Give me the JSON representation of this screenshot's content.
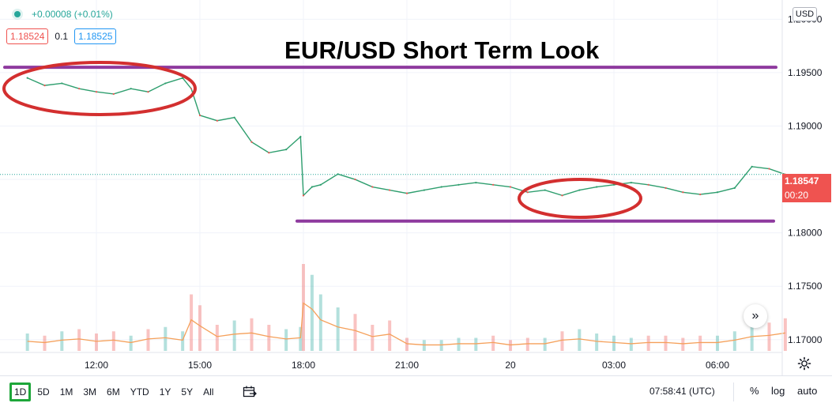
{
  "header": {
    "change": "+0.00008 (+0.01%)",
    "sell_price": "1.18524",
    "spread": "0.1",
    "buy_price": "1.18525",
    "currency": "USD"
  },
  "title": "EUR/USD Short Term Look",
  "price_tags": {
    "last": "1.18547",
    "countdown": "00:20"
  },
  "chart_data": {
    "type": "line",
    "title": "EUR/USD Short Term Look",
    "xlabel": "",
    "ylabel": "",
    "x_ticks": [
      "12:00",
      "15:00",
      "18:00",
      "21:00",
      "20",
      "03:00",
      "06:00"
    ],
    "y_ticks": [
      "1.20000",
      "1.19500",
      "1.19000",
      "1.18500",
      "1.18000",
      "1.17500",
      "1.17000"
    ],
    "ylim": [
      1.1688,
      1.2018
    ],
    "x": [
      "10:00",
      "10:30",
      "11:00",
      "11:30",
      "12:00",
      "12:30",
      "13:00",
      "13:30",
      "14:00",
      "14:30",
      "14:45",
      "15:00",
      "15:30",
      "16:00",
      "16:30",
      "17:00",
      "17:30",
      "17:55",
      "18:00",
      "18:15",
      "18:30",
      "19:00",
      "19:30",
      "20:00",
      "20:30",
      "21:00",
      "21:30",
      "22:00",
      "22:30",
      "23:00",
      "23:30",
      "00:00",
      "00:30",
      "01:00",
      "01:30",
      "02:00",
      "02:30",
      "03:00",
      "03:30",
      "04:00",
      "04:30",
      "05:00",
      "05:30",
      "06:00",
      "06:30",
      "07:00",
      "07:30",
      "07:58"
    ],
    "series": [
      {
        "values": [
          1.1945,
          1.1938,
          1.194,
          1.1935,
          1.1932,
          1.193,
          1.1935,
          1.1932,
          1.194,
          1.1945,
          1.1935,
          1.191,
          1.1905,
          1.1908,
          1.1885,
          1.1875,
          1.1878,
          1.189,
          1.1835,
          1.1843,
          1.1845,
          1.1855,
          1.185,
          1.1843,
          1.184,
          1.1837,
          1.184,
          1.1843,
          1.1845,
          1.1847,
          1.1845,
          1.1843,
          1.1838,
          1.184,
          1.1835,
          1.184,
          1.1843,
          1.1845,
          1.1847,
          1.1845,
          1.1842,
          1.1838,
          1.1836,
          1.1838,
          1.1842,
          1.1862,
          1.186,
          1.18547
        ]
      }
    ],
    "volume": [
      8,
      7,
      9,
      10,
      8,
      9,
      7,
      10,
      11,
      9,
      26,
      21,
      12,
      14,
      15,
      12,
      10,
      11,
      40,
      35,
      26,
      20,
      17,
      12,
      14,
      6,
      5,
      5,
      6,
      6,
      7,
      5,
      6,
      6,
      9,
      10,
      8,
      7,
      6,
      7,
      7,
      6,
      7,
      7,
      9,
      12,
      13,
      15
    ],
    "annotations": {
      "resistance_level": 1.1955,
      "support_level": 1.1811,
      "current_price_line": 1.18547
    },
    "colors": {
      "line": "#2e9e6e",
      "candle_down": "#ef5350",
      "annotation_line": "#8e3a9e",
      "ellipse": "#d32f2f",
      "volume_ma": "#f5a05a"
    },
    "grid": true
  },
  "bottom_bar": {
    "ranges": [
      "1D",
      "5D",
      "1M",
      "3M",
      "6M",
      "YTD",
      "1Y",
      "5Y",
      "All"
    ],
    "active_range": "1D",
    "clock": "07:58:41 (UTC)",
    "percent": "%",
    "log": "log",
    "auto": "auto"
  }
}
